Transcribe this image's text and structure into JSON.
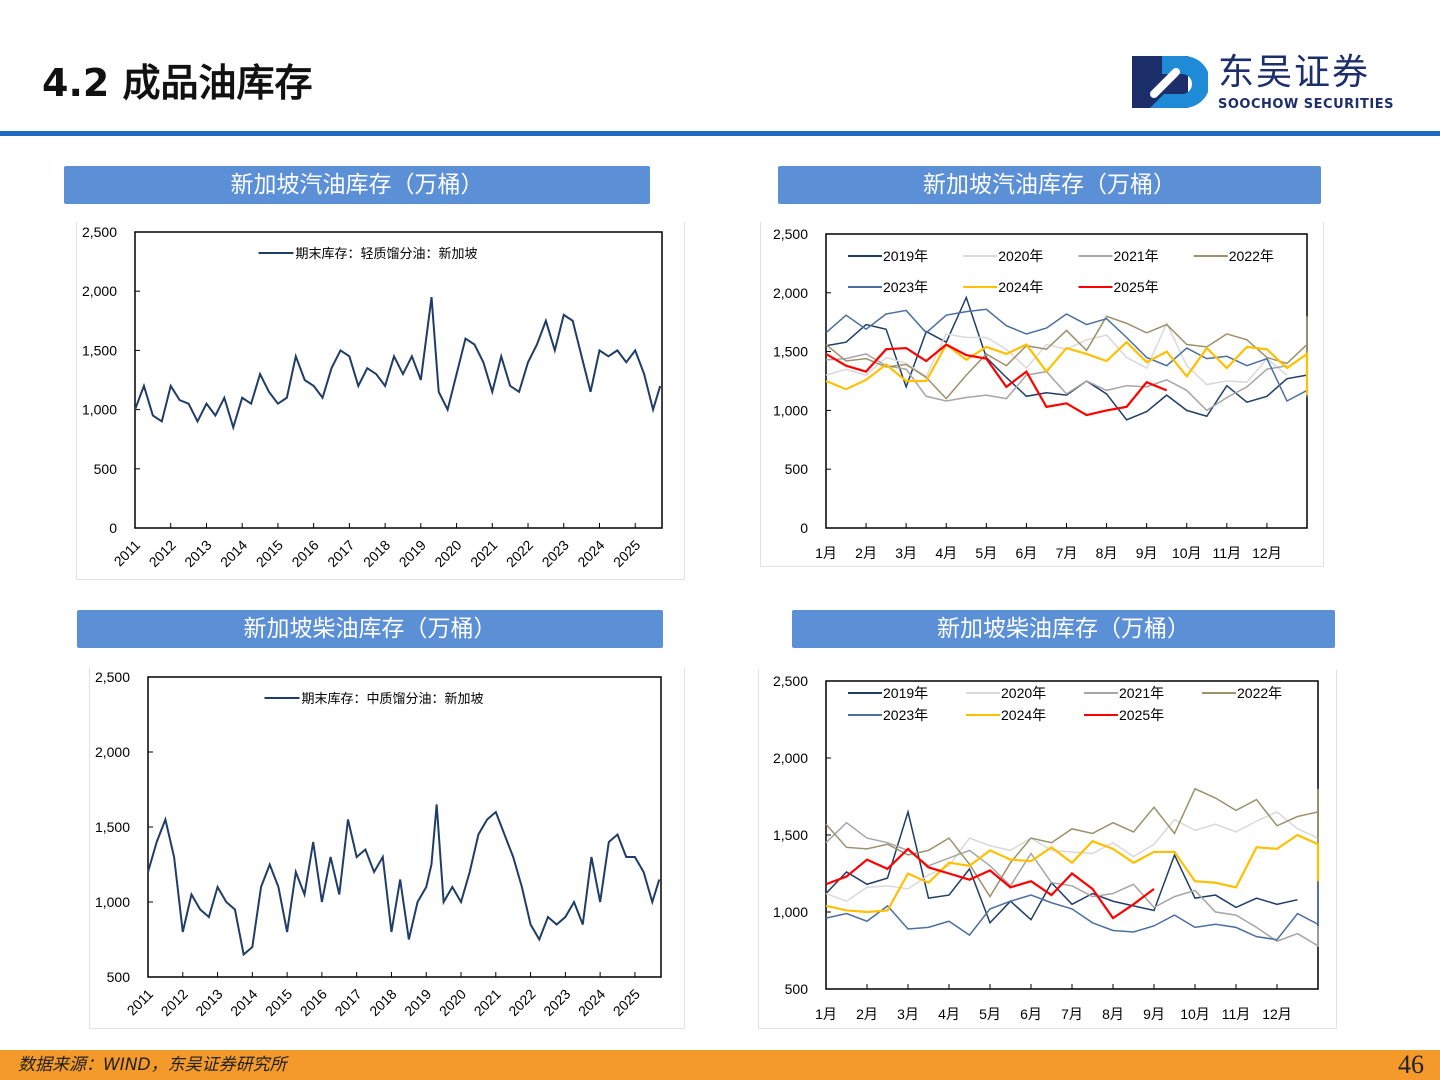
{
  "header": {
    "title": "4.2 成品油库存",
    "logo_cn": "东吴证券",
    "logo_en": "SOOCHOW SECURITIES"
  },
  "footer": {
    "source": "数据来源：WIND，东吴证券研究所",
    "page": "46"
  },
  "colors": {
    "accent": "#1f6bbf",
    "title_bar": "#5b8fd6",
    "footer": "#f39a2b"
  },
  "chart_data": [
    {
      "type": "line",
      "title": "新加坡汽油库存（万桶）",
      "ylim": [
        0,
        2500
      ],
      "yticks": [
        "0",
        "500",
        "1,000",
        "1,500",
        "2,000",
        "2,500"
      ],
      "ytick_values": [
        0,
        500,
        1000,
        1500,
        2000,
        2500
      ],
      "xlim": [
        2011,
        2025.75
      ],
      "xticks": [
        "2011",
        "2012",
        "2013",
        "2014",
        "2015",
        "2016",
        "2017",
        "2018",
        "2019",
        "2020",
        "2021",
        "2022",
        "2023",
        "2024",
        "2025"
      ],
      "legend_position": "top-center",
      "series": [
        {
          "name": "期末库存：轻质馏分油：新加坡",
          "color": "#1f3d66",
          "x": [
            2011,
            2011.25,
            2011.5,
            2011.75,
            2012,
            2012.25,
            2012.5,
            2012.75,
            2013,
            2013.25,
            2013.5,
            2013.75,
            2014,
            2014.25,
            2014.5,
            2014.75,
            2015,
            2015.25,
            2015.5,
            2015.75,
            2016,
            2016.25,
            2016.5,
            2016.75,
            2017,
            2017.25,
            2017.5,
            2017.75,
            2018,
            2018.25,
            2018.5,
            2018.75,
            2019,
            2019.15,
            2019.3,
            2019.5,
            2019.75,
            2020,
            2020.25,
            2020.5,
            2020.75,
            2021,
            2021.25,
            2021.5,
            2021.75,
            2022,
            2022.25,
            2022.5,
            2022.75,
            2023,
            2023.25,
            2023.5,
            2023.75,
            2024,
            2024.25,
            2024.5,
            2024.75,
            2025,
            2025.25,
            2025.5,
            2025.7
          ],
          "values": [
            1000,
            1200,
            950,
            900,
            1200,
            1080,
            1050,
            900,
            1050,
            950,
            1100,
            850,
            1100,
            1050,
            1300,
            1150,
            1050,
            1100,
            1450,
            1250,
            1200,
            1100,
            1350,
            1500,
            1450,
            1200,
            1350,
            1300,
            1200,
            1450,
            1300,
            1450,
            1250,
            1600,
            1950,
            1150,
            1000,
            1300,
            1600,
            1550,
            1400,
            1150,
            1450,
            1200,
            1150,
            1400,
            1550,
            1750,
            1500,
            1800,
            1750,
            1450,
            1150,
            1500,
            1450,
            1500,
            1400,
            1500,
            1300,
            1000,
            1200
          ]
        }
      ]
    },
    {
      "type": "line",
      "title": "新加坡汽油库存（万桶）",
      "ylim": [
        0,
        2500
      ],
      "yticks": [
        "0",
        "500",
        "1,000",
        "1,500",
        "2,000",
        "2,500"
      ],
      "ytick_values": [
        0,
        500,
        1000,
        1500,
        2000,
        2500
      ],
      "xticks": [
        "1月",
        "2月",
        "3月",
        "4月",
        "5月",
        "6月",
        "7月",
        "8月",
        "9月",
        "10月",
        "11月",
        "12月"
      ],
      "x_step": "half-month",
      "legend_position": "top",
      "series": [
        {
          "name": "2019年",
          "color": "#1f3d66",
          "values": [
            1550,
            1580,
            1730,
            1690,
            1200,
            1670,
            1580,
            1960,
            1450,
            1280,
            1120,
            1150,
            1130,
            1250,
            1140,
            920,
            990,
            1130,
            1000,
            950,
            1210,
            1070,
            1120,
            1270,
            1300
          ]
        },
        {
          "name": "2020年",
          "color": "#d9d9d9",
          "values": [
            1300,
            1350,
            1300,
            1450,
            1400,
            1290,
            1650,
            1620,
            1620,
            1520,
            1360,
            1560,
            1520,
            1600,
            1640,
            1450,
            1360,
            1740,
            1380,
            1220,
            1250,
            1240,
            1440,
            1300
          ]
        },
        {
          "name": "2021年",
          "color": "#a6a6a6",
          "values": [
            1430,
            1440,
            1480,
            1380,
            1350,
            1120,
            1080,
            1110,
            1130,
            1100,
            1300,
            1330,
            1140,
            1250,
            1170,
            1210,
            1200,
            1260,
            1170,
            1000,
            1110,
            1200,
            1350,
            1380
          ]
        },
        {
          "name": "2022年",
          "color": "#9c916b",
          "values": [
            1560,
            1420,
            1440,
            1370,
            1390,
            1280,
            1100,
            1300,
            1480,
            1380,
            1550,
            1520,
            1680,
            1510,
            1800,
            1740,
            1660,
            1730,
            1560,
            1540,
            1650,
            1600,
            1450,
            1400,
            1560,
            1430,
            1680,
            1540,
            1800
          ]
        },
        {
          "name": "2023年",
          "color": "#4a6fa0",
          "values": [
            1660,
            1810,
            1690,
            1820,
            1850,
            1660,
            1810,
            1840,
            1860,
            1720,
            1650,
            1700,
            1820,
            1730,
            1780,
            1620,
            1450,
            1380,
            1530,
            1440,
            1460,
            1380,
            1440,
            1080,
            1170,
            1300,
            1130,
            1110,
            1300
          ]
        },
        {
          "name": "2024年",
          "color": "#ffc000",
          "values": [
            1250,
            1180,
            1260,
            1390,
            1250,
            1250,
            1560,
            1430,
            1540,
            1480,
            1560,
            1330,
            1530,
            1480,
            1420,
            1580,
            1410,
            1500,
            1290,
            1530,
            1360,
            1540,
            1520,
            1360,
            1480,
            1200,
            1130,
            1340,
            1450,
            1270,
            1480,
            1420
          ]
        },
        {
          "name": "2025年",
          "color": "#ff0000",
          "values": [
            1480,
            1380,
            1330,
            1520,
            1530,
            1420,
            1560,
            1470,
            1440,
            1200,
            1330,
            1030,
            1060,
            960,
            1000,
            1030,
            1240,
            1170
          ]
        }
      ]
    },
    {
      "type": "line",
      "title": "新加坡柴油库存（万桶）",
      "ylim": [
        500,
        2500
      ],
      "yticks": [
        "500",
        "1,000",
        "1,500",
        "2,000",
        "2,500"
      ],
      "ytick_values": [
        500,
        1000,
        1500,
        2000,
        2500
      ],
      "xlim": [
        2011,
        2025.75
      ],
      "xticks": [
        "2011",
        "2012",
        "2013",
        "2014",
        "2015",
        "2016",
        "2017",
        "2018",
        "2019",
        "2020",
        "2021",
        "2022",
        "2023",
        "2024",
        "2025"
      ],
      "legend_position": "top-center",
      "series": [
        {
          "name": "期末库存：中质馏分油：新加坡",
          "color": "#1f3d66",
          "x": [
            2011,
            2011.25,
            2011.5,
            2011.75,
            2012,
            2012.25,
            2012.5,
            2012.75,
            2013,
            2013.25,
            2013.5,
            2013.75,
            2014,
            2014.25,
            2014.5,
            2014.75,
            2015,
            2015.25,
            2015.5,
            2015.75,
            2016,
            2016.25,
            2016.5,
            2016.75,
            2017,
            2017.25,
            2017.5,
            2017.75,
            2018,
            2018.25,
            2018.5,
            2018.75,
            2019,
            2019.15,
            2019.3,
            2019.5,
            2019.75,
            2020,
            2020.25,
            2020.5,
            2020.75,
            2021,
            2021.25,
            2021.5,
            2021.75,
            2022,
            2022.25,
            2022.5,
            2022.75,
            2023,
            2023.25,
            2023.5,
            2023.75,
            2024,
            2024.25,
            2024.5,
            2024.75,
            2025,
            2025.25,
            2025.5,
            2025.7
          ],
          "values": [
            1200,
            1400,
            1550,
            1300,
            800,
            1050,
            950,
            900,
            1100,
            1000,
            950,
            650,
            700,
            1100,
            1250,
            1100,
            800,
            1200,
            1050,
            1400,
            1000,
            1300,
            1050,
            1550,
            1300,
            1350,
            1200,
            1300,
            800,
            1150,
            750,
            1000,
            1100,
            1250,
            1650,
            1000,
            1100,
            1000,
            1200,
            1450,
            1550,
            1600,
            1450,
            1300,
            1100,
            850,
            750,
            900,
            850,
            900,
            1000,
            850,
            1300,
            1000,
            1400,
            1450,
            1300,
            1300,
            1200,
            1000,
            1150
          ]
        }
      ]
    },
    {
      "type": "line",
      "title": "新加坡柴油库存（万桶）",
      "ylim": [
        500,
        2500
      ],
      "yticks": [
        "500",
        "1,000",
        "1,500",
        "2,000",
        "2,500"
      ],
      "ytick_values": [
        500,
        1000,
        1500,
        2000,
        2500
      ],
      "xticks": [
        "1月",
        "2月",
        "3月",
        "4月",
        "5月",
        "6月",
        "7月",
        "8月",
        "9月",
        "10月",
        "11月",
        "12月"
      ],
      "x_step": "half-month",
      "legend_position": "top",
      "series": [
        {
          "name": "2019年",
          "color": "#1f3d66",
          "values": [
            1120,
            1260,
            1180,
            1220,
            1650,
            1090,
            1110,
            1280,
            930,
            1070,
            950,
            1190,
            1050,
            1120,
            1070,
            1040,
            1010,
            1370,
            1090,
            1110,
            1030,
            1090,
            1050,
            1080
          ]
        },
        {
          "name": "2020年",
          "color": "#d9d9d9",
          "values": [
            1120,
            1070,
            1160,
            1170,
            1150,
            1240,
            1300,
            1480,
            1430,
            1400,
            1480,
            1400,
            1390,
            1380,
            1450,
            1360,
            1440,
            1600,
            1530,
            1570,
            1520,
            1590,
            1650,
            1540,
            1480,
            1450
          ]
        },
        {
          "name": "2021年",
          "color": "#a6a6a6",
          "values": [
            1450,
            1580,
            1480,
            1450,
            1400,
            1300,
            1350,
            1400,
            1300,
            1170,
            1380,
            1190,
            1170,
            1100,
            1120,
            1180,
            1030,
            1100,
            1140,
            1000,
            980,
            900,
            810,
            860,
            780,
            910
          ]
        },
        {
          "name": "2022年",
          "color": "#9c916b",
          "values": [
            1570,
            1420,
            1410,
            1440,
            1370,
            1400,
            1480,
            1310,
            1100,
            1320,
            1480,
            1450,
            1540,
            1510,
            1580,
            1520,
            1680,
            1510,
            1800,
            1740,
            1660,
            1730,
            1560,
            1620,
            1650,
            1600,
            1450,
            1400,
            1560,
            1440,
            1680,
            1540,
            1800
          ]
        },
        {
          "name": "2023年",
          "color": "#4a6fa0",
          "values": [
            960,
            990,
            940,
            1040,
            890,
            900,
            940,
            850,
            1020,
            1070,
            1110,
            1060,
            1020,
            930,
            880,
            870,
            910,
            980,
            900,
            920,
            900,
            840,
            820,
            990,
            920,
            1030,
            1030,
            1090,
            1150,
            1260,
            1350,
            1350,
            1200,
            1180,
            1100
          ]
        },
        {
          "name": "2024年",
          "color": "#ffc000",
          "values": [
            1040,
            1010,
            1000,
            1010,
            1250,
            1190,
            1320,
            1300,
            1400,
            1340,
            1330,
            1420,
            1320,
            1460,
            1410,
            1320,
            1390,
            1390,
            1200,
            1190,
            1160,
            1420,
            1410,
            1500,
            1440,
            1380,
            1440,
            1330,
            1280,
            1380,
            1240,
            1200,
            1330,
            1340,
            1440,
            1360
          ]
        },
        {
          "name": "2025年",
          "color": "#ff0000",
          "values": [
            1180,
            1230,
            1340,
            1280,
            1410,
            1290,
            1250,
            1210,
            1270,
            1160,
            1200,
            1110,
            1250,
            1150,
            960,
            1050,
            1150
          ]
        }
      ]
    }
  ]
}
